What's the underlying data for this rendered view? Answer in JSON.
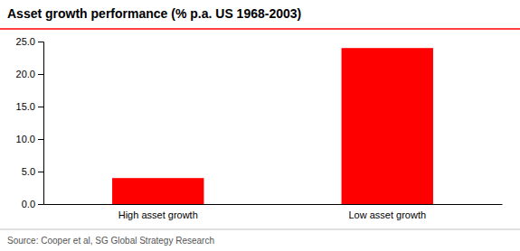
{
  "chart_data": {
    "type": "bar",
    "title": "Asset growth performance (% p.a. US 1968-2003)",
    "source": "Source: Cooper et al, SG Global Strategy Research",
    "categories": [
      "High asset growth",
      "Low asset growth"
    ],
    "values": [
      4.0,
      24.0
    ],
    "color": "#ff0000",
    "ylim": [
      0,
      25.0
    ],
    "yticks": [
      {
        "value": 0.0,
        "label": "0.0"
      },
      {
        "value": 5.0,
        "label": "5.0"
      },
      {
        "value": 10.0,
        "label": "10.0"
      },
      {
        "value": 15.0,
        "label": "15.0"
      },
      {
        "value": 20.0,
        "label": "20.0"
      },
      {
        "value": 25.0,
        "label": "25.0"
      }
    ],
    "grid": false
  }
}
